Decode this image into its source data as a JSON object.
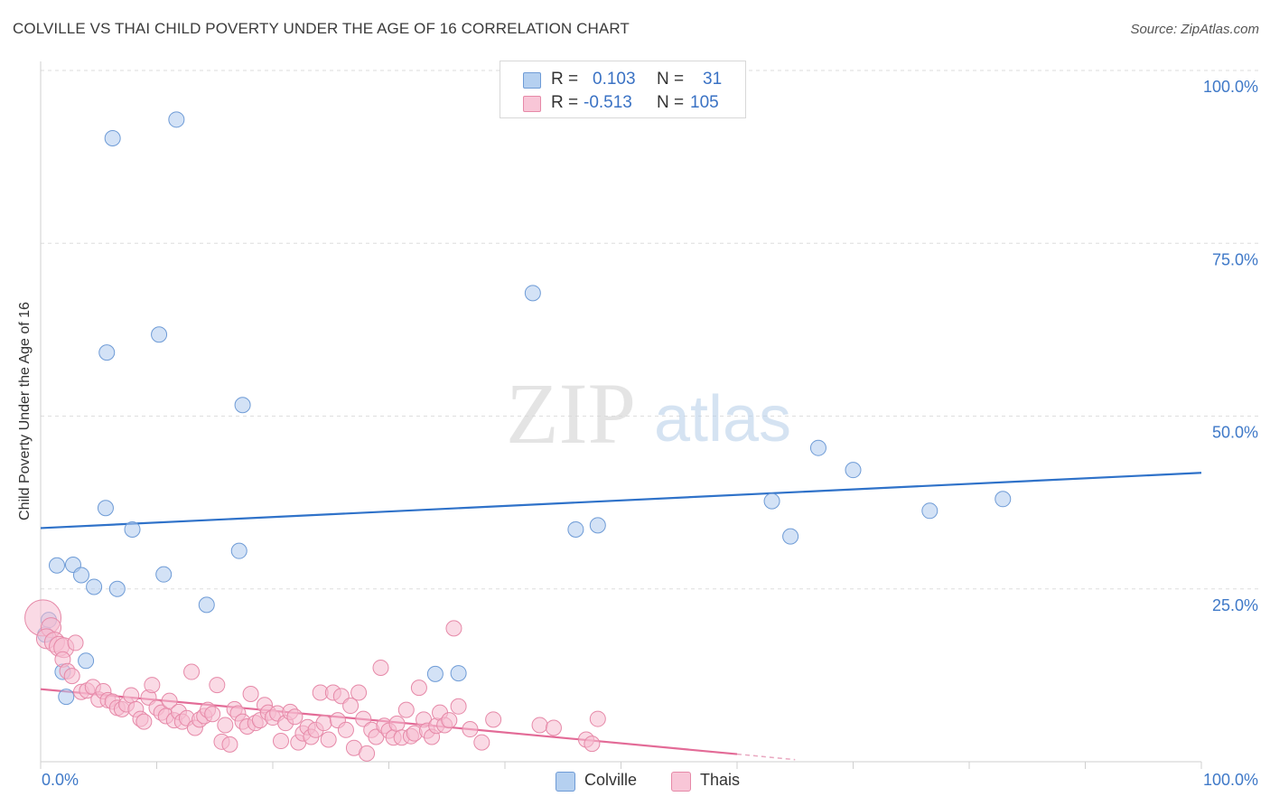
{
  "title": "COLVILLE VS THAI CHILD POVERTY UNDER THE AGE OF 16 CORRELATION CHART",
  "source": "Source: ZipAtlas.com",
  "watermark": {
    "zip": "ZIP",
    "atlas": "atlas"
  },
  "legend": {
    "rows": [
      {
        "r_label": "R =",
        "r_value": "0.103",
        "n_label": "N =",
        "n_value": "31"
      },
      {
        "r_label": "R =",
        "r_value": "-0.513",
        "n_label": "N =",
        "n_value": "105"
      }
    ]
  },
  "bottom_legend": {
    "series1": "Colville",
    "series2": "Thais"
  },
  "colors": {
    "colville_fill": "#aecbee",
    "colville_stroke": "#6e9bd6",
    "colville_line": "#2f72c9",
    "thai_fill": "#f6bcd0",
    "thai_stroke": "#e689a8",
    "thai_line": "#e36b97",
    "tick_label": "#3f79c8",
    "grid": "#dedede"
  },
  "chart_data": {
    "type": "scatter",
    "title": "COLVILLE VS THAI CHILD POVERTY UNDER THE AGE OF 16 CORRELATION CHART",
    "xlabel": "",
    "ylabel": "Child Poverty Under the Age of 16",
    "xlim": [
      0,
      100
    ],
    "ylim": [
      0,
      100
    ],
    "x_tick_labels": [
      "0.0%",
      "100.0%"
    ],
    "y_ticks": [
      25,
      50,
      75,
      100
    ],
    "y_tick_labels": [
      "25.0%",
      "50.0%",
      "75.0%",
      "100.0%"
    ],
    "series": [
      {
        "name": "Colville",
        "points": [
          [
            6.2,
            90.2
          ],
          [
            11.7,
            92.9
          ],
          [
            42.4,
            67.8
          ],
          [
            10.2,
            61.8
          ],
          [
            5.7,
            59.2
          ],
          [
            17.4,
            51.6
          ],
          [
            67.0,
            45.4
          ],
          [
            70.0,
            42.2
          ],
          [
            63.0,
            37.7
          ],
          [
            76.6,
            36.3
          ],
          [
            82.9,
            38.0
          ],
          [
            5.6,
            36.7
          ],
          [
            7.9,
            33.6
          ],
          [
            46.1,
            33.6
          ],
          [
            48.0,
            34.2
          ],
          [
            64.6,
            32.6
          ],
          [
            17.1,
            30.5
          ],
          [
            1.4,
            28.4
          ],
          [
            2.8,
            28.5
          ],
          [
            3.5,
            27.0
          ],
          [
            10.6,
            27.1
          ],
          [
            4.6,
            25.3
          ],
          [
            6.6,
            25.0
          ],
          [
            14.3,
            22.7
          ],
          [
            0.7,
            20.5
          ],
          [
            0.4,
            18.4
          ],
          [
            1.9,
            13.0
          ],
          [
            3.9,
            14.6
          ],
          [
            34.0,
            12.7
          ],
          [
            36.0,
            12.8
          ],
          [
            2.2,
            9.4
          ]
        ]
      },
      {
        "name": "Thais",
        "points": [
          [
            0.2,
            20.8
          ],
          [
            0.9,
            19.4
          ],
          [
            0.5,
            17.8
          ],
          [
            1.2,
            17.3
          ],
          [
            1.6,
            16.7
          ],
          [
            2.0,
            16.5
          ],
          [
            3.0,
            17.2
          ],
          [
            1.9,
            14.8
          ],
          [
            2.3,
            13.1
          ],
          [
            2.7,
            12.4
          ],
          [
            3.5,
            10.1
          ],
          [
            4.0,
            10.3
          ],
          [
            4.5,
            10.8
          ],
          [
            5.0,
            9.0
          ],
          [
            5.4,
            10.2
          ],
          [
            5.8,
            8.9
          ],
          [
            6.2,
            8.7
          ],
          [
            6.6,
            7.8
          ],
          [
            7.0,
            7.6
          ],
          [
            7.4,
            8.3
          ],
          [
            7.8,
            9.6
          ],
          [
            8.2,
            7.6
          ],
          [
            8.6,
            6.2
          ],
          [
            8.9,
            5.8
          ],
          [
            9.3,
            9.3
          ],
          [
            9.6,
            11.1
          ],
          [
            10.0,
            7.8
          ],
          [
            10.4,
            7.1
          ],
          [
            10.8,
            6.6
          ],
          [
            11.1,
            8.8
          ],
          [
            11.5,
            6.0
          ],
          [
            11.9,
            7.2
          ],
          [
            12.2,
            5.8
          ],
          [
            12.6,
            6.3
          ],
          [
            13.0,
            13.0
          ],
          [
            13.3,
            4.9
          ],
          [
            13.7,
            6.1
          ],
          [
            14.1,
            6.6
          ],
          [
            14.4,
            7.5
          ],
          [
            14.8,
            6.9
          ],
          [
            15.2,
            11.1
          ],
          [
            15.6,
            2.9
          ],
          [
            15.9,
            5.3
          ],
          [
            16.3,
            2.5
          ],
          [
            16.7,
            7.6
          ],
          [
            17.0,
            7.0
          ],
          [
            17.4,
            5.8
          ],
          [
            17.8,
            5.1
          ],
          [
            18.1,
            9.8
          ],
          [
            18.5,
            5.6
          ],
          [
            18.9,
            6.0
          ],
          [
            19.3,
            8.2
          ],
          [
            19.6,
            7.1
          ],
          [
            20.0,
            6.4
          ],
          [
            20.4,
            7.0
          ],
          [
            20.7,
            3.0
          ],
          [
            21.1,
            5.6
          ],
          [
            21.5,
            7.2
          ],
          [
            21.9,
            6.5
          ],
          [
            22.2,
            2.8
          ],
          [
            22.6,
            4.1
          ],
          [
            23.0,
            5.0
          ],
          [
            23.3,
            3.6
          ],
          [
            23.7,
            4.6
          ],
          [
            24.1,
            10.0
          ],
          [
            24.4,
            5.6
          ],
          [
            24.8,
            3.2
          ],
          [
            25.2,
            10.0
          ],
          [
            25.6,
            6.0
          ],
          [
            25.9,
            9.5
          ],
          [
            26.3,
            4.6
          ],
          [
            26.7,
            8.1
          ],
          [
            27.0,
            2.0
          ],
          [
            27.4,
            10.0
          ],
          [
            27.8,
            6.2
          ],
          [
            28.1,
            1.2
          ],
          [
            28.5,
            4.6
          ],
          [
            28.9,
            3.6
          ],
          [
            29.3,
            13.6
          ],
          [
            29.6,
            5.2
          ],
          [
            30.0,
            4.5
          ],
          [
            30.4,
            3.5
          ],
          [
            30.7,
            5.5
          ],
          [
            31.1,
            3.5
          ],
          [
            31.5,
            7.5
          ],
          [
            31.9,
            3.7
          ],
          [
            32.2,
            4.1
          ],
          [
            32.6,
            10.7
          ],
          [
            33.0,
            6.1
          ],
          [
            33.3,
            4.5
          ],
          [
            33.7,
            3.6
          ],
          [
            34.1,
            5.2
          ],
          [
            34.4,
            7.1
          ],
          [
            34.8,
            5.3
          ],
          [
            35.2,
            6.0
          ],
          [
            35.6,
            19.3
          ],
          [
            36.0,
            8.0
          ],
          [
            37.0,
            4.7
          ],
          [
            38.0,
            2.8
          ],
          [
            39.0,
            6.1
          ],
          [
            43.0,
            5.3
          ],
          [
            44.2,
            4.9
          ],
          [
            47.0,
            3.2
          ],
          [
            47.5,
            2.6
          ],
          [
            48.0,
            6.2
          ]
        ]
      }
    ],
    "trendlines": [
      {
        "name": "Colville",
        "x": [
          0,
          100
        ],
        "y": [
          33.8,
          41.8
        ]
      },
      {
        "name": "Thais",
        "x": [
          0,
          60
        ],
        "y": [
          10.5,
          1.1
        ]
      },
      {
        "name": "Thais-extension",
        "x": [
          60,
          65
        ],
        "y": [
          1.1,
          0.3
        ]
      }
    ]
  }
}
